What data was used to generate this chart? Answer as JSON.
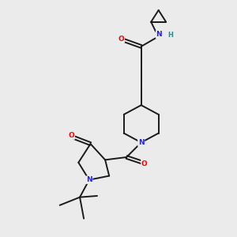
{
  "background_color": "#ebebeb",
  "bond_color": "#1a1a1a",
  "atom_colors": {
    "N": "#2020ff",
    "O": "#ff0000",
    "H": "#338888",
    "C": "#1a1a1a"
  },
  "figsize": [
    3.0,
    3.0
  ],
  "dpi": 100
}
